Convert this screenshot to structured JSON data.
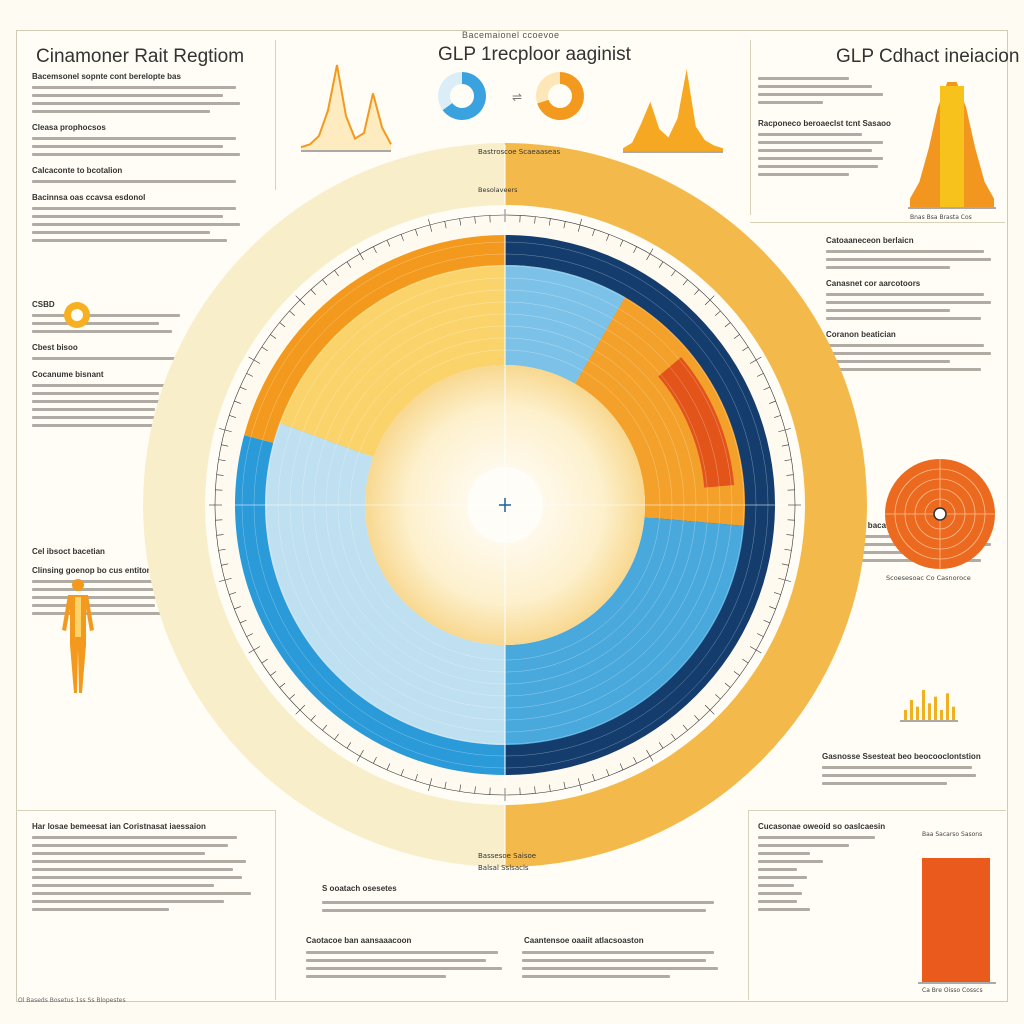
{
  "header": {
    "top_caption": "Bacemaionel ccoevoe",
    "title_left": "Cinamoner Rait Regtiom",
    "title_center": "GLP 1recploor aaginist",
    "title_right": "GLP Cdhact ineiacion"
  },
  "left_panel": {
    "sections": [
      {
        "heading": "Bacemsonel sopnte cont berelopte bas",
        "lines": 4
      },
      {
        "heading": "Cleasa prophocsos",
        "lines": 3
      },
      {
        "heading": "Calcaconte to bcotalion",
        "lines": 1
      },
      {
        "heading": "Bacinnsa oas ccavsa esdonol",
        "lines": 5
      },
      {
        "heading": "CSBD",
        "lines": 3
      },
      {
        "heading": "Cbest bisoo",
        "lines": 1
      },
      {
        "heading": "Cocanume bisnant",
        "lines": 6
      },
      {
        "heading": "Cel ibsoct bacetian",
        "lines": 0
      },
      {
        "heading": "Clinsing goenop bo cus entitonot",
        "lines": 5
      }
    ],
    "bottom_heading": "Har losae bemeesat ian Coristnasat iaessaion",
    "bottom_lines": 10,
    "footnote": "Ol Baseds Bosetus 1ss Ss Blopestes"
  },
  "right_panel": {
    "sections": [
      {
        "heading": "",
        "lines": 4
      },
      {
        "heading": "Racponeco beroaeclst tcnt Sasaoo",
        "lines": 6
      },
      {
        "heading": "Catoaaneceon berlaicn",
        "lines": 3
      },
      {
        "heading": "Canasnet cor aarcotoors",
        "lines": 4
      },
      {
        "heading": "Coranon beatician",
        "lines": 4
      },
      {
        "heading": "Elssticoaa bacaticn",
        "lines": 4
      },
      {
        "heading": "Gasnosse Ssesteat beo beocooclontstion",
        "lines": 3
      }
    ],
    "target_caption": "Scoesesoac  Co  Casnoroce",
    "bottom_heading": "Cucasonae oweoid so oaslcaesin",
    "bottom_bar_caption": "Baa Sacarso Sasons",
    "bottom_axis": "Ca  Bre  Oisso  Cosscs"
  },
  "bottom_center": {
    "label_top": "S ooatach osesetes",
    "col1_heading": "Caotacoe ban aansaaacoon",
    "col2_heading": "Caantensoe oaaiit atlacsoaston",
    "lines": 4
  },
  "wheel": {
    "top_label": "Bastroscoe Scaeaaseas",
    "bottom_label": "Bassesoe Saisoe",
    "bottom_label2": "Balsal Sslsacls",
    "inner_label": "Besolaveers"
  },
  "chart_data": {
    "type": "pie",
    "title": "GLP 1recploor aaginist",
    "rings": [
      {
        "name": "outer band",
        "segments": [
          {
            "label": "left",
            "value": 50,
            "color": "#f9eeca"
          },
          {
            "label": "right",
            "value": 50,
            "color": "#f4b94b"
          }
        ]
      },
      {
        "name": "quadrant ring",
        "segments": [
          {
            "label": "upper-right",
            "value": 25,
            "color": "#143d6e"
          },
          {
            "label": "lower-right",
            "value": 25,
            "color": "#143d6e"
          },
          {
            "label": "lower-left",
            "value": 25,
            "color": "#2a9ad8"
          },
          {
            "label": "upper-left",
            "value": 25,
            "color": "#f39a1e"
          }
        ]
      },
      {
        "name": "middle ring",
        "segments": [
          {
            "label": "upper-right",
            "value": 25,
            "color": "#f3a12a"
          },
          {
            "label": "lower-right",
            "value": 25,
            "color": "#4aa9dc"
          },
          {
            "label": "lower-left",
            "value": 25,
            "color": "#bfe0f0"
          },
          {
            "label": "upper-left",
            "value": 25,
            "color": "#fbd36b"
          }
        ]
      },
      {
        "name": "core",
        "segments": [
          {
            "label": "center",
            "value": 100,
            "color": "#fff7df"
          }
        ]
      }
    ],
    "accent": {
      "label": "highlight wedge",
      "value": 6,
      "color": "#e2541a"
    },
    "colors": {
      "orange": "#f39a1e",
      "dark_blue": "#143d6e",
      "blue": "#2a9ad8",
      "pale": "#f9eeca",
      "red": "#e2541a"
    }
  },
  "mini_charts": {
    "left_peak": {
      "type": "line",
      "values": [
        1,
        2,
        5,
        14,
        30,
        12,
        4,
        6,
        20,
        8,
        2
      ]
    },
    "right_peak": {
      "type": "area",
      "values": [
        1,
        3,
        10,
        18,
        8,
        5,
        12,
        30,
        9,
        4,
        2,
        1
      ]
    },
    "donut_blue": {
      "type": "pie",
      "values": [
        65,
        35
      ],
      "colors": [
        "#3aa3df",
        "#dbeef8"
      ]
    },
    "donut_orange": {
      "type": "pie",
      "values": [
        70,
        30
      ],
      "colors": [
        "#f39a1e",
        "#fde6b8"
      ]
    },
    "right_bell": {
      "type": "area",
      "values": [
        2,
        6,
        14,
        24,
        30,
        30,
        24,
        14,
        6,
        2
      ],
      "axis": "Bnas  Bsa  Brasta  Cos"
    },
    "small_bars": {
      "type": "bar",
      "values": [
        3,
        6,
        4,
        9,
        5,
        7,
        3,
        8,
        4
      ]
    },
    "bottom_bar": {
      "type": "bar",
      "values": [
        100
      ],
      "color": "#ea5a1c"
    }
  }
}
